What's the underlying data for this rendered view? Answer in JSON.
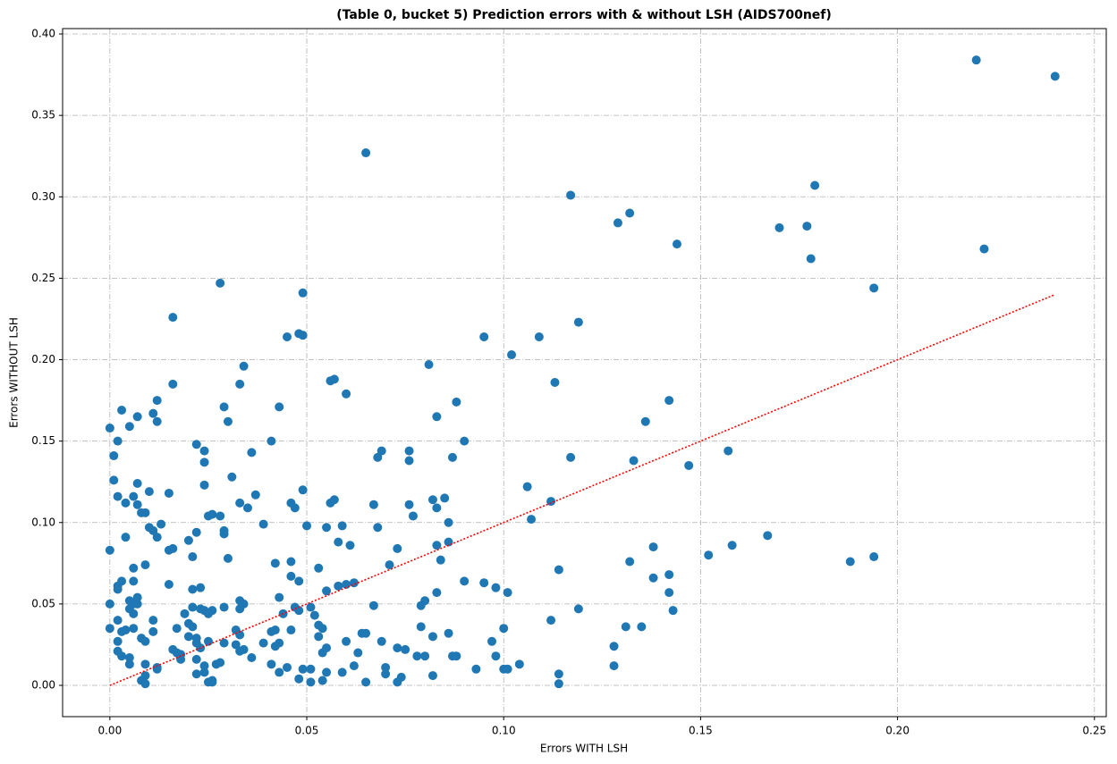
{
  "chart_data": {
    "type": "scatter",
    "title": "(Table 0, bucket 5) Prediction errors with & without LSH (AIDS700nef)",
    "x_label": "Errors WITH LSH",
    "y_label": "Errors WITHOUT LSH",
    "color": "#1f77b4",
    "grid": true,
    "xlim": [
      -0.012,
      0.253
    ],
    "ylim": [
      -0.0192,
      0.4033
    ],
    "xticks": [
      {
        "value": 0,
        "label": "0.00"
      },
      {
        "value": 0.05,
        "label": "0.05"
      },
      {
        "value": 0.1,
        "label": "0.10"
      },
      {
        "value": 0.15,
        "label": "0.15"
      },
      {
        "value": 0.2,
        "label": "0.20"
      },
      {
        "value": 0.25,
        "label": "0.25"
      }
    ],
    "yticks": [
      {
        "value": 0,
        "label": "0.00"
      },
      {
        "value": 0.05,
        "label": "0.05"
      },
      {
        "value": 0.1,
        "label": "0.10"
      },
      {
        "value": 0.15,
        "label": "0.15"
      },
      {
        "value": 0.2,
        "label": "0.20"
      },
      {
        "value": 0.25,
        "label": "0.25"
      },
      {
        "value": 0.3,
        "label": "0.30"
      },
      {
        "value": 0.35,
        "label": "0.35"
      },
      {
        "value": 0.4,
        "label": "0.40"
      }
    ],
    "reference_line": {
      "x": [
        0,
        0.24
      ],
      "y": [
        0,
        0.24
      ],
      "color": "#ff0000"
    },
    "x": [
      0.22,
      0.24,
      0.065,
      0.117,
      0.179,
      0.129,
      0.132,
      0.144,
      0.17,
      0.177,
      0.178,
      0.222,
      0.194,
      0.028,
      0.049,
      0.016,
      0.119,
      0.045,
      0.048,
      0.049,
      0.095,
      0.109,
      0.102,
      0.081,
      0.034,
      0.016,
      0.033,
      0.056,
      0.057,
      0.06,
      0.113,
      0.142,
      0.012,
      0.088,
      0.029,
      0.043,
      0.003,
      0.007,
      0.011,
      0.012,
      0.005,
      0.0,
      0.03,
      0.083,
      0.136,
      0.002,
      0.022,
      0.041,
      0.09,
      0.001,
      0.024,
      0.036,
      0.069,
      0.076,
      0.068,
      0.076,
      0.087,
      0.117,
      0.133,
      0.157,
      0.147,
      0.024,
      0.031,
      0.001,
      0.007,
      0.024,
      0.106,
      0.049,
      0.01,
      0.015,
      0.037,
      0.002,
      0.006,
      0.004,
      0.007,
      0.033,
      0.046,
      0.047,
      0.035,
      0.057,
      0.056,
      0.067,
      0.076,
      0.082,
      0.085,
      0.112,
      0.083,
      0.008,
      0.009,
      0.025,
      0.026,
      0.028,
      0.077,
      0.107,
      0.013,
      0.039,
      0.05,
      0.059,
      0.086,
      0.01,
      0.055,
      0.068,
      0.011,
      0.029,
      0.029,
      0.022,
      0.004,
      0.012,
      0.02,
      0.058,
      0.086,
      0.167,
      0.0,
      0.015,
      0.016,
      0.061,
      0.073,
      0.083,
      0.138,
      0.158,
      0.152,
      0.021,
      0.03,
      0.188,
      0.194,
      0.042,
      0.046,
      0.132,
      0.084,
      0.009,
      0.071,
      0.006,
      0.053,
      0.114,
      0.142,
      0.138,
      0.046,
      0.09,
      0.006,
      0.003,
      0.095,
      0.048,
      0.062,
      0.06,
      0.015,
      0.002,
      0.058,
      0.023,
      0.098,
      0.021,
      0.002,
      0.055,
      0.101,
      0.142,
      0.083,
      0.007,
      0.043,
      0.005,
      0.033,
      0.08,
      0.006,
      0.0,
      0.007,
      0.034,
      0.067,
      0.079,
      0.021,
      0.047,
      0.051,
      0.023,
      0.119,
      0.029,
      0.033,
      0.005,
      0.024,
      0.026,
      0.048,
      0.006,
      0.025,
      0.019,
      0.143,
      0.044,
      0.052,
      0.002,
      0.011,
      0.112,
      0.02,
      0.053,
      0.021,
      0.079,
      0.1,
      0.131,
      0.135,
      0.0,
      0.006,
      0.017,
      0.032,
      0.042,
      0.054,
      0.004,
      0.003,
      0.011,
      0.041,
      0.046,
      0.086,
      0.033,
      0.064,
      0.065,
      0.082,
      0.02,
      0.053,
      0.008,
      0.022,
      0.009,
      0.002,
      0.06,
      0.069,
      0.097,
      0.022,
      0.025,
      0.029,
      0.039,
      0.043,
      0.032,
      0.042,
      0.128,
      0.055,
      0.023,
      0.073,
      0.075,
      0.034,
      0.016,
      0.033,
      0.054,
      0.017,
      0.002,
      0.018,
      0.063,
      0.003,
      0.078,
      0.08,
      0.087,
      0.088,
      0.098,
      0.005,
      0.018,
      0.036,
      0.022,
      0.005,
      0.009,
      0.027,
      0.028,
      0.024,
      0.041,
      0.045,
      0.062,
      0.104,
      0.128,
      0.012,
      0.012,
      0.049,
      0.051,
      0.07,
      0.093,
      0.1,
      0.101,
      0.043,
      0.055,
      0.059,
      0.022,
      0.024,
      0.07,
      0.114,
      0.082,
      0.009,
      0.048,
      0.074,
      0.008,
      0.026,
      0.025,
      0.026,
      0.054,
      0.051,
      0.065,
      0.073,
      0.009,
      0.114
    ],
    "y": [
      0.384,
      0.374,
      0.327,
      0.301,
      0.307,
      0.284,
      0.29,
      0.271,
      0.281,
      0.282,
      0.262,
      0.268,
      0.244,
      0.247,
      0.241,
      0.226,
      0.223,
      0.214,
      0.216,
      0.215,
      0.214,
      0.214,
      0.203,
      0.197,
      0.196,
      0.185,
      0.185,
      0.187,
      0.188,
      0.179,
      0.186,
      0.175,
      0.175,
      0.174,
      0.171,
      0.171,
      0.169,
      0.165,
      0.167,
      0.162,
      0.159,
      0.158,
      0.162,
      0.165,
      0.162,
      0.15,
      0.148,
      0.15,
      0.15,
      0.141,
      0.144,
      0.143,
      0.144,
      0.144,
      0.14,
      0.138,
      0.14,
      0.14,
      0.138,
      0.144,
      0.135,
      0.137,
      0.128,
      0.126,
      0.124,
      0.123,
      0.122,
      0.12,
      0.119,
      0.118,
      0.117,
      0.116,
      0.116,
      0.112,
      0.111,
      0.112,
      0.112,
      0.109,
      0.109,
      0.114,
      0.112,
      0.111,
      0.111,
      0.114,
      0.115,
      0.113,
      0.109,
      0.106,
      0.106,
      0.104,
      0.105,
      0.104,
      0.104,
      0.102,
      0.099,
      0.099,
      0.098,
      0.098,
      0.1,
      0.097,
      0.097,
      0.097,
      0.095,
      0.095,
      0.093,
      0.094,
      0.091,
      0.091,
      0.089,
      0.088,
      0.088,
      0.092,
      0.083,
      0.083,
      0.084,
      0.086,
      0.084,
      0.086,
      0.085,
      0.086,
      0.08,
      0.079,
      0.078,
      0.076,
      0.079,
      0.075,
      0.076,
      0.076,
      0.077,
      0.074,
      0.074,
      0.072,
      0.072,
      0.071,
      0.068,
      0.066,
      0.067,
      0.064,
      0.064,
      0.064,
      0.063,
      0.064,
      0.063,
      0.062,
      0.062,
      0.061,
      0.061,
      0.06,
      0.06,
      0.059,
      0.059,
      0.058,
      0.057,
      0.057,
      0.057,
      0.054,
      0.054,
      0.052,
      0.052,
      0.052,
      0.05,
      0.05,
      0.05,
      0.05,
      0.049,
      0.049,
      0.048,
      0.048,
      0.048,
      0.047,
      0.047,
      0.048,
      0.047,
      0.047,
      0.046,
      0.046,
      0.046,
      0.044,
      0.044,
      0.044,
      0.046,
      0.044,
      0.043,
      0.04,
      0.04,
      0.04,
      0.038,
      0.037,
      0.036,
      0.036,
      0.035,
      0.036,
      0.036,
      0.035,
      0.035,
      0.035,
      0.034,
      0.034,
      0.035,
      0.034,
      0.033,
      0.033,
      0.033,
      0.034,
      0.032,
      0.031,
      0.032,
      0.032,
      0.03,
      0.03,
      0.03,
      0.029,
      0.029,
      0.027,
      0.027,
      0.027,
      0.027,
      0.027,
      0.026,
      0.027,
      0.026,
      0.026,
      0.026,
      0.025,
      0.024,
      0.024,
      0.023,
      0.023,
      0.023,
      0.022,
      0.022,
      0.022,
      0.021,
      0.02,
      0.02,
      0.021,
      0.019,
      0.02,
      0.018,
      0.018,
      0.018,
      0.018,
      0.018,
      0.018,
      0.017,
      0.016,
      0.017,
      0.016,
      0.013,
      0.013,
      0.013,
      0.014,
      0.012,
      0.013,
      0.011,
      0.012,
      0.013,
      0.012,
      0.01,
      0.011,
      0.01,
      0.01,
      0.011,
      0.01,
      0.01,
      0.01,
      0.008,
      0.008,
      0.008,
      0.007,
      0.008,
      0.007,
      0.007,
      0.006,
      0.006,
      0.004,
      0.005,
      0.003,
      0.003,
      0.002,
      0.002,
      0.003,
      0.002,
      0.002,
      0.002,
      0.001,
      0.001
    ]
  }
}
